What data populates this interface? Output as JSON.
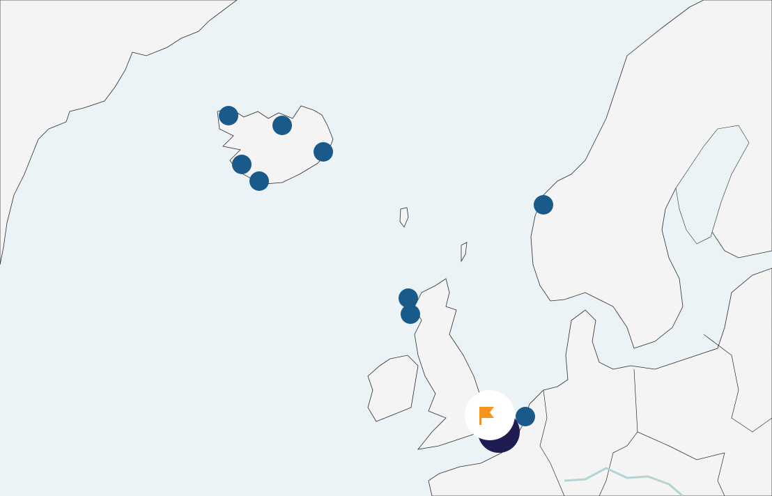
{
  "map": {
    "colors": {
      "sea": "#ecf3f6",
      "land": "#f4f4f4",
      "coastline": "#2a2a2a",
      "river": "#b5d3d3",
      "marker": "#1a5a8a",
      "cluster": "#1f1c52",
      "selected_marker_bg": "#ffffff",
      "flag": "#f7941d"
    },
    "markers": [
      {
        "icon": "location-dot-icon"
      },
      {
        "icon": "location-dot-icon"
      },
      {
        "icon": "location-dot-icon"
      },
      {
        "icon": "location-dot-icon"
      },
      {
        "icon": "location-dot-icon"
      },
      {
        "icon": "location-dot-icon"
      },
      {
        "icon": "location-dot-icon"
      },
      {
        "icon": "location-dot-icon"
      },
      {
        "icon": "location-dot-icon"
      }
    ],
    "cluster": {
      "icon": "cluster-icon"
    },
    "selected": {
      "icon": "flag-icon"
    }
  }
}
